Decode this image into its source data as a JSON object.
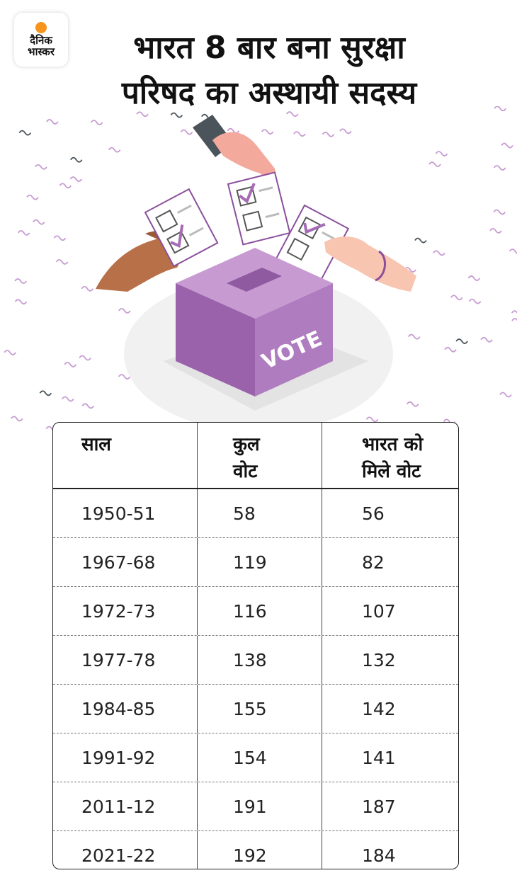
{
  "brand": {
    "line1": "दैनिक",
    "line2": "भास्कर",
    "accent": "#f7941d"
  },
  "title": {
    "line1": "भारत 8 बार बना सुरक्षा",
    "line2": "परिषद का अस्थायी सदस्य"
  },
  "illustration": {
    "box_label": "VOTE",
    "box_color": "#a56bb5"
  },
  "table": {
    "headers": {
      "year": "साल",
      "total_votes": "कुल वोट",
      "india_votes": "भारत को मिले वोट"
    },
    "header_lines": {
      "year": [
        "साल"
      ],
      "total_votes": [
        "कुल",
        "वोट"
      ],
      "india_votes": [
        "भारत को",
        "मिले वोट"
      ]
    },
    "rows": [
      {
        "year": "1950-51",
        "total": "58",
        "india": "56"
      },
      {
        "year": "1967-68",
        "total": "119",
        "india": "82"
      },
      {
        "year": "1972-73",
        "total": "116",
        "india": "107"
      },
      {
        "year": "1977-78",
        "total": "138",
        "india": "132"
      },
      {
        "year": "1984-85",
        "total": "155",
        "india": "142"
      },
      {
        "year": "1991-92",
        "total": "154",
        "india": "141"
      },
      {
        "year": "2011-12",
        "total": "191",
        "india": "187"
      },
      {
        "year": "2021-22",
        "total": "192",
        "india": "184"
      }
    ]
  }
}
